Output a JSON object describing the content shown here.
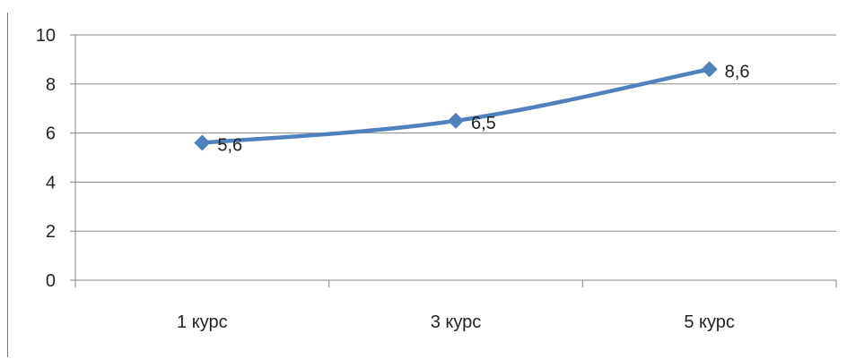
{
  "colors": {
    "series_line": "#4F81BD",
    "marker_fill": "#4F81BD",
    "gridline": "#868686",
    "axis": "#868686",
    "text": "#222222"
  },
  "chart_data": {
    "type": "line",
    "categories": [
      "1 курс",
      "3 курс",
      "5 курс"
    ],
    "series": [
      {
        "values": [
          5.6,
          6.5,
          8.6
        ],
        "data_labels": [
          "5,6",
          "6,5",
          "8,6"
        ],
        "marker": "diamond"
      }
    ],
    "y_ticks": [
      "0",
      "2",
      "4",
      "6",
      "8",
      "10"
    ],
    "ylim": [
      0,
      10
    ],
    "grid": true,
    "legend": "none",
    "title": "",
    "xlabel": "",
    "ylabel": ""
  }
}
